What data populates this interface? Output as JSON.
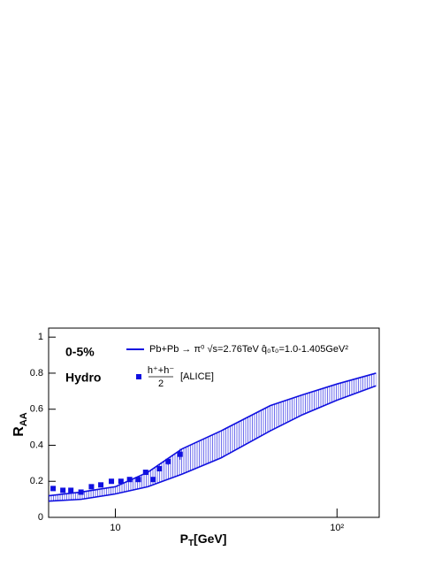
{
  "chart_data": {
    "type": "band-scatter",
    "ylabel": {
      "main": "R",
      "sub": "AA"
    },
    "xlabel": {
      "main": "P",
      "sub": "T",
      "rest": "[GeV]"
    },
    "annotations": [
      "0-5%",
      "Hydro"
    ],
    "log_x": true,
    "xlim": [
      5,
      155
    ],
    "ylim": [
      0,
      1.05
    ],
    "xticks": [
      {
        "value": 10,
        "label": "10"
      },
      {
        "value": 100,
        "label": "10²"
      }
    ],
    "yticks": [
      0,
      0.2,
      0.4,
      0.6,
      0.8,
      1
    ],
    "band": {
      "name": "Pb+Pb → π⁰ √s=2.76TeV  q̂₀τ₀=1.0-1.405GeV²",
      "color": "#1010e0",
      "x": [
        5,
        7,
        10,
        14,
        20,
        30,
        50,
        70,
        100,
        150
      ],
      "upper": [
        0.12,
        0.14,
        0.17,
        0.25,
        0.38,
        0.48,
        0.62,
        0.68,
        0.74,
        0.8
      ],
      "lower": [
        0.09,
        0.1,
        0.13,
        0.17,
        0.24,
        0.33,
        0.48,
        0.57,
        0.65,
        0.73
      ]
    },
    "series": [
      {
        "name": "[ALICE]",
        "fraction": [
          "h⁺+h⁻",
          "2"
        ],
        "color": "#1010e0",
        "x": [
          5.24,
          5.8,
          6.3,
          7.0,
          7.8,
          8.6,
          9.6,
          10.6,
          11.6,
          12.7,
          13.7,
          14.8,
          15.8,
          17.3,
          19.6
        ],
        "values": [
          0.16,
          0.15,
          0.15,
          0.14,
          0.17,
          0.18,
          0.2,
          0.2,
          0.21,
          0.21,
          0.25,
          0.21,
          0.27,
          0.31,
          0.35
        ],
        "errors": [
          0.005,
          0.005,
          0.005,
          0.005,
          0.005,
          0.005,
          0.005,
          0.005,
          0.005,
          0.005,
          0.01,
          0.01,
          0.015,
          0.02,
          0.03
        ]
      }
    ]
  }
}
